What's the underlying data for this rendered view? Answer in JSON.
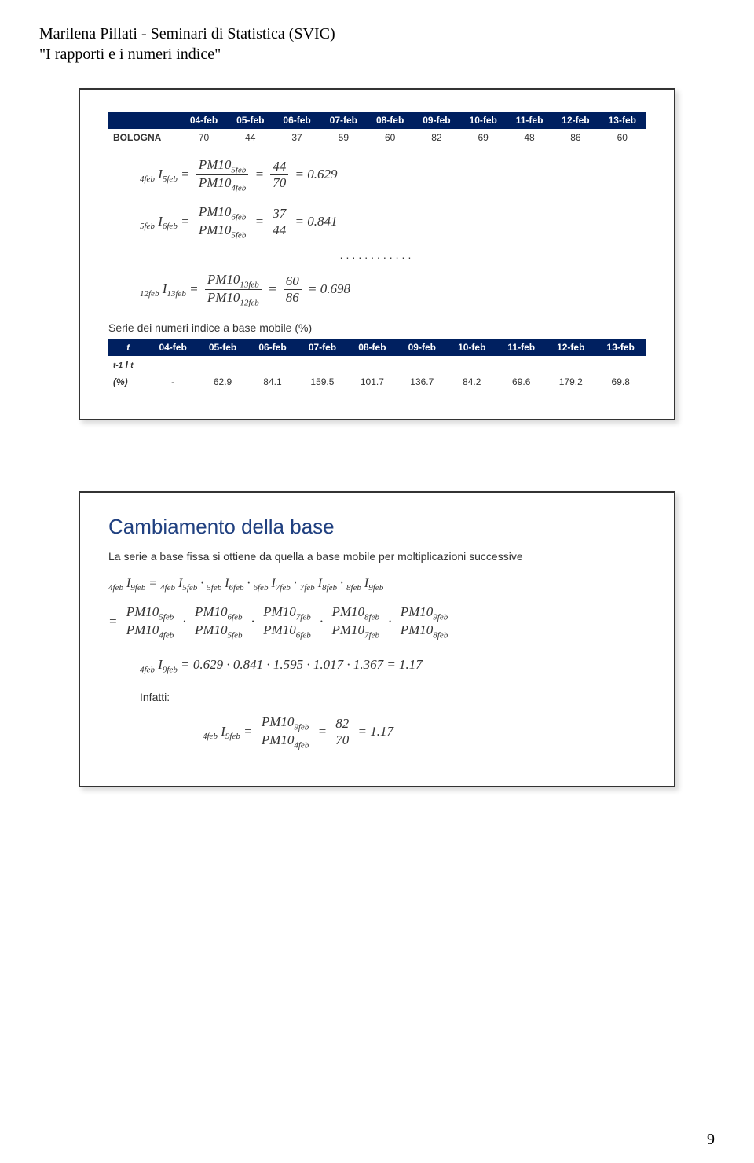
{
  "doc_header_line1": "Marilena Pillati - Seminari di Statistica (SVIC)",
  "doc_header_line2": "\"I rapporti e i numeri indice\"",
  "page_number": "9",
  "card1": {
    "table1": {
      "columns": [
        "",
        "04-feb",
        "05-feb",
        "06-feb",
        "07-feb",
        "08-feb",
        "09-feb",
        "10-feb",
        "11-feb",
        "12-feb",
        "13-feb"
      ],
      "row_label": "BOLOGNA",
      "values": [
        "70",
        "44",
        "37",
        "59",
        "60",
        "82",
        "69",
        "48",
        "86",
        "60"
      ]
    },
    "f1": {
      "lhs_pre": "4feb",
      "lhs_post": "5feb",
      "num": "PM10",
      "num_sub": "5feb",
      "den": "PM10",
      "den_sub": "4feb",
      "val_num": "44",
      "val_den": "70",
      "result": "0.629"
    },
    "f2": {
      "lhs_pre": "5feb",
      "lhs_post": "6feb",
      "num": "PM10",
      "num_sub": "6feb",
      "den": "PM10",
      "den_sub": "5feb",
      "val_num": "37",
      "val_den": "44",
      "result": "0.841"
    },
    "dots": "............",
    "f3": {
      "lhs_pre": "12feb",
      "lhs_post": "13feb",
      "num": "PM10",
      "num_sub": "13feb",
      "den": "PM10",
      "den_sub": "12feb",
      "val_num": "60",
      "val_den": "86",
      "result": "0.698"
    },
    "series_title": "Serie dei numeri indice a base mobile (%)",
    "table2": {
      "header_first": "t",
      "columns": [
        "04-feb",
        "05-feb",
        "06-feb",
        "07-feb",
        "08-feb",
        "09-feb",
        "10-feb",
        "11-feb",
        "12-feb",
        "13-feb"
      ],
      "row_label_html": "t-1 I t",
      "row_pct_label": "(%)",
      "values": [
        "-",
        "62.9",
        "84.1",
        "159.5",
        "101.7",
        "136.7",
        "84.2",
        "69.6",
        "179.2",
        "69.8"
      ]
    }
  },
  "card2": {
    "title": "Cambiamento della base",
    "intro": "La serie a base fissa si ottiene da quella a base mobile per moltiplicazioni successive",
    "chain": {
      "lhs_pre": "4feb",
      "lhs_post": "9feb",
      "terms": [
        {
          "pre": "4feb",
          "post": "5feb"
        },
        {
          "pre": "5feb",
          "post": "6feb"
        },
        {
          "pre": "6feb",
          "post": "7feb"
        },
        {
          "pre": "7feb",
          "post": "8feb"
        },
        {
          "pre": "8feb",
          "post": "9feb"
        }
      ]
    },
    "pm_chain": [
      {
        "num": "5feb",
        "den": "4feb"
      },
      {
        "num": "6feb",
        "den": "5feb"
      },
      {
        "num": "7feb",
        "den": "6feb"
      },
      {
        "num": "8feb",
        "den": "7feb"
      },
      {
        "num": "9feb",
        "den": "8feb"
      }
    ],
    "numeric": {
      "lhs_pre": "4feb",
      "lhs_post": "9feb",
      "expr": "0.629 · 0.841 · 1.595 · 1.017 · 1.367 = 1.17"
    },
    "infatti_label": "Infatti:",
    "infatti": {
      "lhs_pre": "4feb",
      "lhs_post": "9feb",
      "num": "PM10",
      "num_sub": "9feb",
      "den": "PM10",
      "den_sub": "4feb",
      "val_num": "82",
      "val_den": "70",
      "result": "1.17"
    }
  }
}
